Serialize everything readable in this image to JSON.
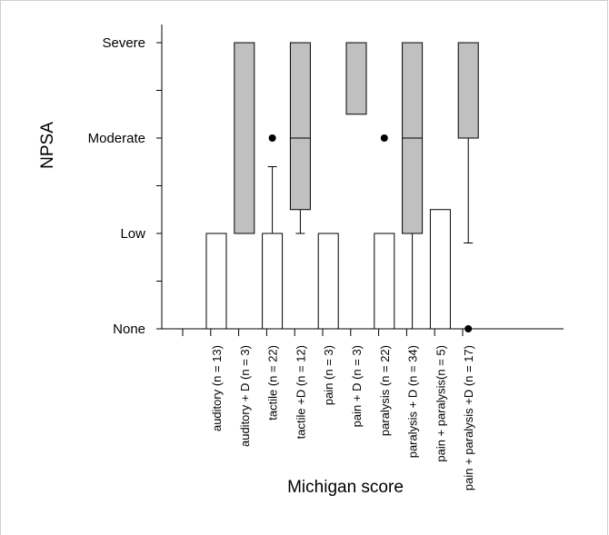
{
  "chart_data": {
    "type": "boxplot",
    "xlabel": "Michigan score",
    "ylabel": "NPSA",
    "y_levels": [
      "None",
      "Low",
      "Moderate",
      "Severe"
    ],
    "ylim": [
      0,
      3
    ],
    "grid": false,
    "colors": {
      "with_D": "#c0c0c0",
      "without_D": "#ffffff",
      "stroke": "#000000"
    },
    "categories": [
      {
        "label": "auditory (n = 13)",
        "q1": 0,
        "median": null,
        "q3": 1,
        "whisker_low": null,
        "whisker_high": null,
        "outliers": [],
        "shaded": false
      },
      {
        "label": "auditory + D (n = 3)",
        "q1": 1,
        "median": null,
        "q3": 3,
        "whisker_low": null,
        "whisker_high": null,
        "outliers": [],
        "shaded": true
      },
      {
        "label": "tactile (n = 22)",
        "q1": 0,
        "median": null,
        "q3": 1,
        "whisker_low": null,
        "whisker_high": 1.7,
        "outliers": [
          2
        ],
        "shaded": false
      },
      {
        "label": "tactile +D (n = 12)",
        "q1": 1.25,
        "median": 2,
        "q3": 3,
        "whisker_low": 1,
        "whisker_high": null,
        "outliers": [],
        "shaded": true
      },
      {
        "label": "pain (n = 3)",
        "q1": 0,
        "median": null,
        "q3": 1,
        "whisker_low": null,
        "whisker_high": null,
        "outliers": [],
        "shaded": false
      },
      {
        "label": "pain + D (n = 3)",
        "q1": 2.25,
        "median": null,
        "q3": 3,
        "whisker_low": null,
        "whisker_high": null,
        "outliers": [],
        "shaded": true
      },
      {
        "label": "paralysis (n = 22)",
        "q1": 0,
        "median": null,
        "q3": 1,
        "whisker_low": null,
        "whisker_high": null,
        "outliers": [
          2
        ],
        "shaded": false
      },
      {
        "label": "paralysis + D (n = 34)",
        "q1": 1,
        "median": 2,
        "q3": 3,
        "whisker_low": 0,
        "whisker_high": null,
        "outliers": [],
        "shaded": true
      },
      {
        "label": "pain + paralysis(n = 5)",
        "q1": 0,
        "median": null,
        "q3": 1.25,
        "whisker_low": null,
        "whisker_high": null,
        "outliers": [],
        "shaded": false
      },
      {
        "label": "pain + paralysis +D (n = 17)",
        "q1": 2,
        "median": null,
        "q3": 3,
        "whisker_low": 0.9,
        "whisker_high": null,
        "outliers": [
          0
        ],
        "shaded": true
      }
    ]
  }
}
